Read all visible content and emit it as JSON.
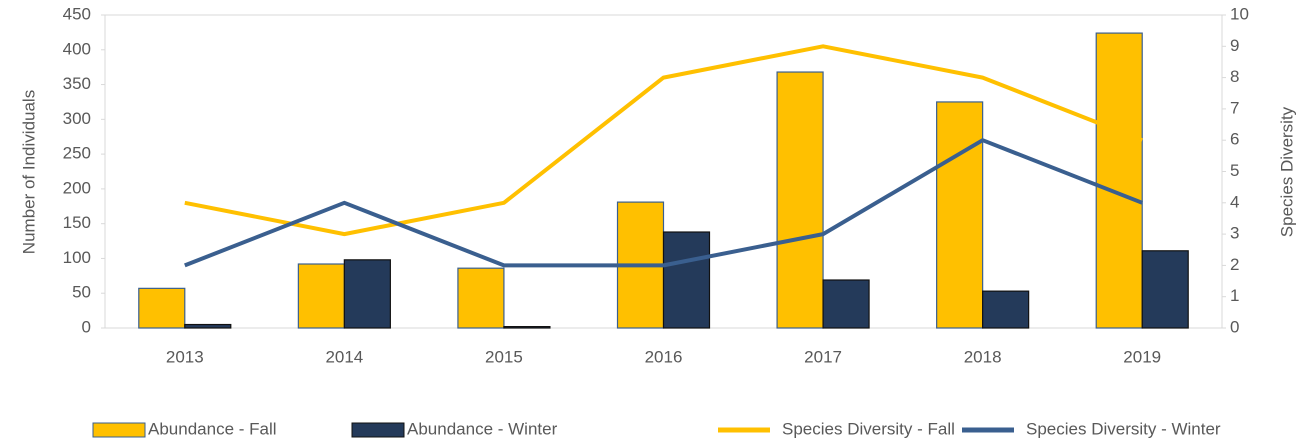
{
  "chart_data": {
    "type": "bar",
    "categories": [
      "2013",
      "2014",
      "2015",
      "2016",
      "2017",
      "2018",
      "2019"
    ],
    "series": [
      {
        "name": "Abundance - Fall",
        "type": "bar",
        "color": "#ffc000",
        "values": [
          57,
          92,
          86,
          181,
          368,
          325,
          424
        ]
      },
      {
        "name": "Abundance - Winter",
        "type": "bar",
        "color": "#243a5a",
        "values": [
          5,
          98,
          2,
          138,
          69,
          53,
          111
        ]
      },
      {
        "name": "Species Diversity - Fall",
        "type": "line",
        "axis": "y2",
        "color": "#ffc000",
        "values": [
          4,
          3,
          4,
          8,
          9,
          8,
          6
        ]
      },
      {
        "name": "Species Diversity - Winter",
        "type": "line",
        "axis": "y2",
        "color": "#3a5f8f",
        "values": [
          2,
          4,
          2,
          2,
          3,
          6,
          4
        ]
      }
    ],
    "y_label": "Number of  Individuals",
    "y2_label": "Species Diversity",
    "ylim": [
      0,
      450
    ],
    "yticks": [
      0,
      50,
      100,
      150,
      200,
      250,
      300,
      350,
      400,
      450
    ],
    "y2lim": [
      0,
      10
    ],
    "y2ticks": [
      0,
      1,
      2,
      3,
      4,
      5,
      6,
      7,
      8,
      9,
      10
    ],
    "legend": "bottom"
  }
}
